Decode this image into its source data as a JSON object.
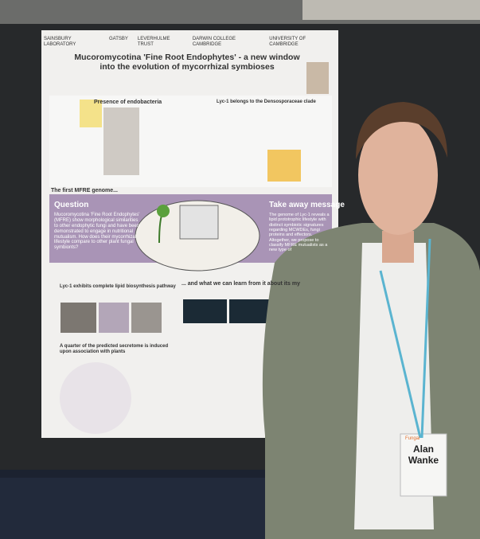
{
  "poster": {
    "logos": [
      "SAINSBURY LABORATORY",
      "GATSBY",
      "LEVERHULME TRUST",
      "DARWIN COLLEGE CAMBRIDGE",
      "UNIVERSITY OF CAMBRIDGE"
    ],
    "title": "Mucoromycotina 'Fine Root Endophytes' - a new window into the evolution of mycorrhizal symbioses",
    "headings": {
      "endobacteria": "Presence of endobacteria",
      "clade": "Lyc-1 belongs to the Densosporaceae clade",
      "genome": "The first MFRE genome...",
      "question": "Question",
      "takeaway": "Take away message",
      "lipid": "Lyc-1 exhibits complete lipid biosynthesis pathway",
      "learn": "... and what we can learn from it about its my",
      "secretome": "A quarter of the predicted secretome is induced upon association with plants"
    },
    "question_text": "Mucoromycotina 'Fine Root Endophytes' (MFRE) show morphological similarities to other endophytic fungi and have been demonstrated to engage in nutritional mutualism. How does their mycorrhizal lifestyle compare to other plant fungal symbionts?",
    "takeaway_text": "The genome of Lyc-1 reveals a lipid prototrophic lifestyle with distinct symbiotic signatures regarding MCWDEs, fungi proteins and effectors. Altogether, we propose to classify MFRE mutualists as a new type of"
  },
  "badge": {
    "event": "Fungal",
    "first_name": "Alan",
    "last_name": "Wanke"
  }
}
